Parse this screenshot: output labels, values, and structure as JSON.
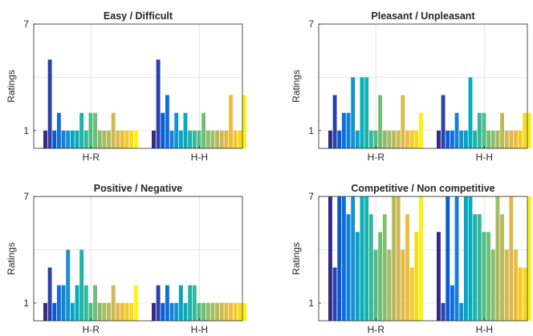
{
  "chart_data": [
    {
      "type": "bar",
      "title": "Easy / Difficult",
      "ylabel": "Ratings",
      "ylim": [
        0,
        7
      ],
      "yticks": [
        1,
        7
      ],
      "categories": [
        "H-R",
        "H-H"
      ],
      "grid": true,
      "groups": [
        {
          "name": "H-R",
          "values": [
            1,
            5,
            1,
            2,
            1,
            1,
            1,
            1,
            2,
            1,
            2,
            2,
            1,
            1,
            1,
            2,
            1,
            1,
            1,
            1,
            1
          ]
        },
        {
          "name": "H-H",
          "values": [
            1,
            5,
            2,
            3,
            1,
            2,
            1,
            2,
            1,
            1,
            1,
            2,
            1,
            1,
            1,
            1,
            1,
            3,
            1,
            1,
            3
          ]
        }
      ]
    },
    {
      "type": "bar",
      "title": "Pleasant / Unpleasant",
      "ylabel": "Ratings",
      "ylim": [
        0,
        7
      ],
      "yticks": [
        1,
        7
      ],
      "categories": [
        "H-R",
        "H-H"
      ],
      "grid": true,
      "groups": [
        {
          "name": "H-R",
          "values": [
            1,
            3,
            1,
            2,
            2,
            4,
            1,
            4,
            4,
            1,
            1,
            3,
            1,
            1,
            1,
            1,
            3,
            1,
            1,
            1,
            2
          ]
        },
        {
          "name": "H-H",
          "values": [
            1,
            3,
            1,
            1,
            2,
            1,
            1,
            4,
            1,
            2,
            2,
            1,
            1,
            1,
            2,
            1,
            1,
            1,
            1,
            2,
            2
          ]
        }
      ]
    },
    {
      "type": "bar",
      "title": "Positive / Negative",
      "ylabel": "Ratings",
      "ylim": [
        0,
        7
      ],
      "yticks": [
        1,
        7
      ],
      "categories": [
        "H-R",
        "H-H"
      ],
      "grid": true,
      "groups": [
        {
          "name": "H-R",
          "values": [
            1,
            3,
            1,
            2,
            2,
            4,
            1,
            2,
            4,
            2,
            1,
            2,
            1,
            1,
            1,
            2,
            1,
            1,
            1,
            1,
            2
          ]
        },
        {
          "name": "H-H",
          "values": [
            1,
            2,
            1,
            2,
            1,
            1,
            2,
            1,
            2,
            2,
            1,
            1,
            1,
            1,
            1,
            1,
            1,
            1,
            1,
            1,
            1
          ]
        }
      ]
    },
    {
      "type": "bar",
      "title": "Competitive / Non competitive",
      "ylabel": "Ratings",
      "ylim": [
        0,
        7
      ],
      "yticks": [
        1,
        7
      ],
      "categories": [
        "H-R",
        "H-H"
      ],
      "grid": true,
      "groups": [
        {
          "name": "H-R",
          "values": [
            7,
            3,
            7,
            7,
            6,
            7,
            5,
            7,
            7,
            6,
            4,
            5,
            6,
            4,
            7,
            7,
            4,
            6,
            3,
            5,
            7
          ]
        },
        {
          "name": "H-H",
          "values": [
            5,
            1,
            7,
            2,
            7,
            1,
            7,
            7,
            6,
            6,
            5,
            5,
            4,
            7,
            6,
            4,
            7,
            4,
            3,
            3,
            7
          ]
        }
      ]
    }
  ],
  "palette": [
    "#352a87",
    "#2c42a8",
    "#0a5ad4",
    "#0f6fde",
    "#1581d6",
    "#1292d2",
    "#07a1c8",
    "#06abbb",
    "#1ab3a9",
    "#33b899",
    "#52bc85",
    "#6ebf75",
    "#8abe6c",
    "#a3bd60",
    "#b9bb5b",
    "#cfb956",
    "#dfba4a",
    "#eebd3b",
    "#f7c829",
    "#f6da1c",
    "#f9f30f"
  ]
}
